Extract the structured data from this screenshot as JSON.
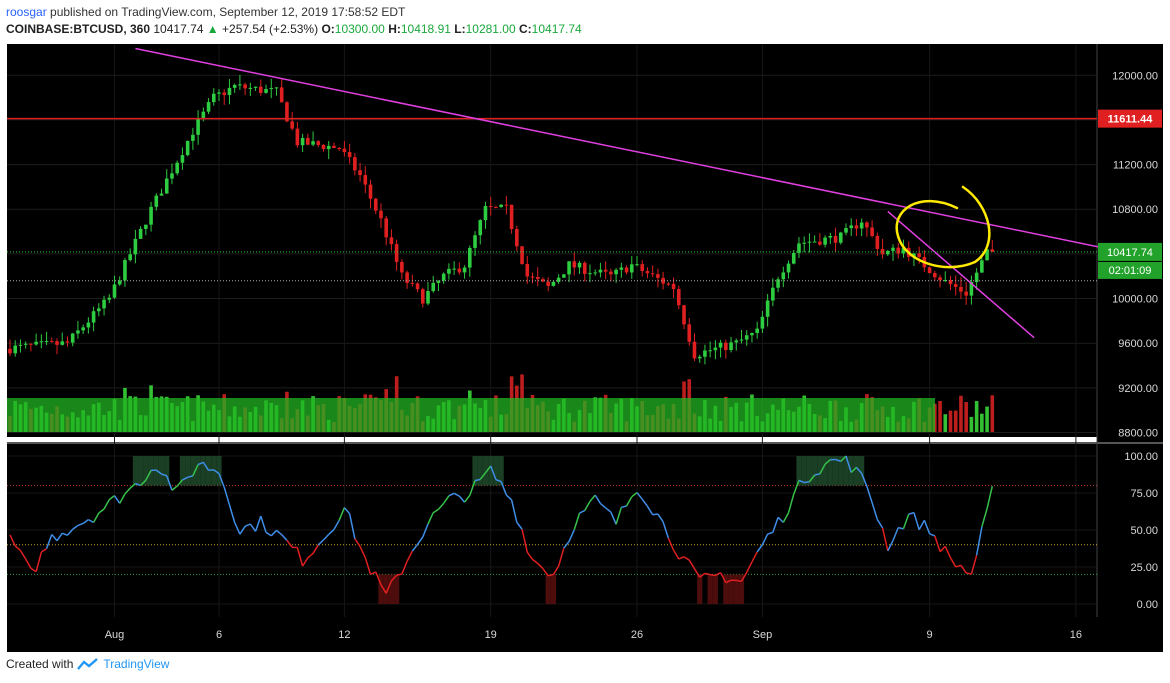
{
  "header": {
    "author": "roosgar",
    "published_text": "published on TradingView.com, September 12, 2019 17:58:52 EDT",
    "symbol": "COINBASE:BTCUSD, 360",
    "last": "10417.74",
    "change_arrow": "▲",
    "change": "+257.54 (+2.53%)",
    "open_label": "O:",
    "open": "10300.00",
    "high_label": "H:",
    "high": "10418.91",
    "low_label": "L:",
    "low": "10281.00",
    "close_label": "C:",
    "close": "10417.74"
  },
  "footer": {
    "created_with": "Created with",
    "brand": "TradingView"
  },
  "colors": {
    "background": "#000000",
    "up": "#2ecc40",
    "down": "#e02020",
    "trendline": "#e040e0",
    "resistance": "#e02020",
    "annotation": "#ffea00",
    "rsi_blue": "#3f8ee8",
    "rsi_green": "#36c24a",
    "rsi_red": "#e02020",
    "axis_text": "#d8d8d8"
  },
  "chart_data": {
    "type": "candlestick",
    "price_axis": {
      "ticks": [
        12000,
        11600,
        11200,
        10800,
        10400,
        10000,
        9600,
        9200,
        8800
      ],
      "tick_labels": [
        "12000.00",
        "11200.00",
        "10800.00",
        "10000.00",
        "9600.00",
        "9200.00",
        "8800.00"
      ],
      "ylim": [
        8760,
        12280
      ]
    },
    "x_labels": [
      "Aug",
      "6",
      "12",
      "19",
      "26",
      "Sep",
      "9",
      "16"
    ],
    "markers": {
      "resistance_price": 11611.44,
      "resistance_label": "11611.44",
      "last_price_label": "10417.74",
      "countdown_label": "02:01:09"
    },
    "trendlines": [
      {
        "from": [
          "Aug 2",
          12240
        ],
        "to": [
          "Sep 20",
          10350
        ]
      },
      {
        "from": [
          "Sep 7",
          10780
        ],
        "to": [
          "Sep 14",
          9650
        ]
      }
    ],
    "price_key_points": [
      [
        "Jul 27",
        9550
      ],
      [
        "Jul 30",
        9600
      ],
      [
        "Aug 1",
        10000
      ],
      [
        "Aug 3",
        10800
      ],
      [
        "Aug 5",
        11500
      ],
      [
        "Aug 6",
        11800
      ],
      [
        "Aug 7",
        11900
      ],
      [
        "Aug 9",
        11850
      ],
      [
        "Aug 10",
        11400
      ],
      [
        "Aug 12",
        11350
      ],
      [
        "Aug 13",
        11100
      ],
      [
        "Aug 14",
        10700
      ],
      [
        "Aug 15",
        10200
      ],
      [
        "Aug 16",
        10000
      ],
      [
        "Aug 17",
        10200
      ],
      [
        "Aug 18",
        10300
      ],
      [
        "Aug 19",
        10800
      ],
      [
        "Aug 20",
        10800
      ],
      [
        "Aug 21",
        10200
      ],
      [
        "Aug 22",
        10100
      ],
      [
        "Aug 23",
        10300
      ],
      [
        "Aug 24",
        10250
      ],
      [
        "Aug 25",
        10200
      ],
      [
        "Aug 26",
        10300
      ],
      [
        "Aug 27",
        10200
      ],
      [
        "Aug 28",
        10100
      ],
      [
        "Aug 29",
        9500
      ],
      [
        "Aug 31",
        9600
      ],
      [
        "Sep 1",
        9700
      ],
      [
        "Sep 2",
        10200
      ],
      [
        "Sep 3",
        10500
      ],
      [
        "Sep 5",
        10550
      ],
      [
        "Sep 6",
        10700
      ],
      [
        "Sep 7",
        10400
      ],
      [
        "Sep 8",
        10450
      ],
      [
        "Sep 9",
        10300
      ],
      [
        "Sep 10",
        10150
      ],
      [
        "Sep 11",
        10050
      ],
      [
        "Sep 12",
        10417.74
      ]
    ],
    "oscillator": {
      "ticks": [
        100,
        75,
        50,
        25,
        0
      ],
      "tick_labels": [
        "100.00",
        "75.00",
        "50.00",
        "25.00",
        "0.00"
      ],
      "levels": [
        80,
        40,
        20
      ],
      "key_points": [
        [
          "Jul 27",
          45
        ],
        [
          "Jul 28",
          20
        ],
        [
          "Jul 29",
          45
        ],
        [
          "Jul 31",
          60
        ],
        [
          "Aug 2",
          80
        ],
        [
          "Aug 3",
          95
        ],
        [
          "Aug 4",
          75
        ],
        [
          "Aug 5",
          95
        ],
        [
          "Aug 6",
          90
        ],
        [
          "Aug 7",
          50
        ],
        [
          "Aug 8",
          55
        ],
        [
          "Aug 9",
          45
        ],
        [
          "Aug 10",
          30
        ],
        [
          "Aug 11",
          45
        ],
        [
          "Aug 12",
          65
        ],
        [
          "Aug 13",
          30
        ],
        [
          "Aug 14",
          5
        ],
        [
          "Aug 15",
          30
        ],
        [
          "Aug 16",
          55
        ],
        [
          "Aug 17",
          70
        ],
        [
          "Aug 18",
          75
        ],
        [
          "Aug 19",
          90
        ],
        [
          "Aug 20",
          70
        ],
        [
          "Aug 21",
          30
        ],
        [
          "Aug 22",
          20
        ],
        [
          "Aug 23",
          55
        ],
        [
          "Aug 24",
          70
        ],
        [
          "Aug 25",
          55
        ],
        [
          "Aug 26",
          80
        ],
        [
          "Aug 27",
          60
        ],
        [
          "Aug 28",
          35
        ],
        [
          "Aug 29",
          15
        ],
        [
          "Aug 30",
          20
        ],
        [
          "Aug 31",
          15
        ],
        [
          "Sep 1",
          40
        ],
        [
          "Sep 2",
          60
        ],
        [
          "Sep 3",
          85
        ],
        [
          "Sep 4",
          95
        ],
        [
          "Sep 5",
          98
        ],
        [
          "Sep 6",
          80
        ],
        [
          "Sep 7",
          40
        ],
        [
          "Sep 8",
          60
        ],
        [
          "Sep 9",
          50
        ],
        [
          "Sep 10",
          30
        ],
        [
          "Sep 11",
          20
        ],
        [
          "Sep 12",
          75
        ]
      ]
    }
  }
}
